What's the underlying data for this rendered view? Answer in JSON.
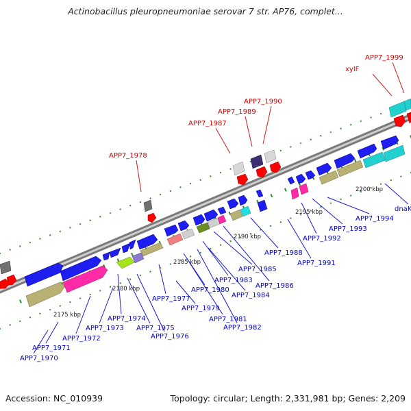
{
  "title": "Actinobacillus pleuropneumoniae serovar 7 str. AP76, complet...",
  "footer": {
    "accession": "Accession: NC_010939",
    "topology": "Topology: circular; Length: 2,331,981 bp; Genes: 2,209"
  },
  "colors": {
    "backbone": "#8c8c8c",
    "dots": "#2e8b2e",
    "blue_label": "#0000cc",
    "red_label": "#cc0000",
    "leader_blue": "#1a1acc",
    "leader_red": "#cc1a1a"
  },
  "ticks": [
    {
      "text": "2175 kbp"
    },
    {
      "text": "2180 kbp"
    },
    {
      "text": "2185 kbp"
    },
    {
      "text": "2190 kbp"
    },
    {
      "text": "2195 kbp"
    },
    {
      "text": "2200 kbp"
    }
  ],
  "gene_labels": [
    {
      "text": "APP7_1970",
      "color": "blue"
    },
    {
      "text": "APP7_1971",
      "color": "blue"
    },
    {
      "text": "APP7_1972",
      "color": "blue"
    },
    {
      "text": "APP7_1973",
      "color": "blue"
    },
    {
      "text": "APP7_1974",
      "color": "blue"
    },
    {
      "text": "APP7_1975",
      "color": "blue"
    },
    {
      "text": "APP7_1976",
      "color": "blue"
    },
    {
      "text": "APP7_1977",
      "color": "blue"
    },
    {
      "text": "APP7_1979",
      "color": "blue"
    },
    {
      "text": "APP7_1980",
      "color": "blue"
    },
    {
      "text": "APP7_1981",
      "color": "blue"
    },
    {
      "text": "APP7_1982",
      "color": "blue"
    },
    {
      "text": "APP7_1983",
      "color": "blue"
    },
    {
      "text": "APP7_1984",
      "color": "blue"
    },
    {
      "text": "APP7_1985",
      "color": "blue"
    },
    {
      "text": "APP7_1986",
      "color": "blue"
    },
    {
      "text": "APP7_1988",
      "color": "blue"
    },
    {
      "text": "APP7_1991",
      "color": "blue"
    },
    {
      "text": "APP7_1992",
      "color": "blue"
    },
    {
      "text": "APP7_1993",
      "color": "blue"
    },
    {
      "text": "APP7_1994",
      "color": "blue"
    },
    {
      "text": "dnaK",
      "color": "blue"
    },
    {
      "text": "APP7_1978",
      "color": "red"
    },
    {
      "text": "APP7_1987",
      "color": "red"
    },
    {
      "text": "APP7_1989",
      "color": "red"
    },
    {
      "text": "APP7_1990",
      "color": "red"
    },
    {
      "text": "xylF",
      "color": "red"
    },
    {
      "text": "APP7_1999",
      "color": "red"
    }
  ]
}
